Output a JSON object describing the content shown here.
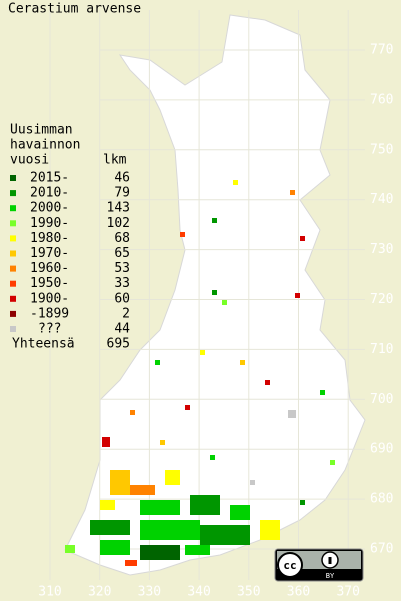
{
  "title": "Cerastium arvense",
  "legend": {
    "heading": [
      "Uusimman",
      "havainnon",
      "vuosi"
    ],
    "count_heading": "lkm",
    "entries": [
      {
        "label": "2015-",
        "count": 46,
        "color": "#006400"
      },
      {
        "label": "2010-",
        "count": 79,
        "color": "#009600"
      },
      {
        "label": "2000-",
        "count": 143,
        "color": "#00d200"
      },
      {
        "label": "1990-",
        "count": 102,
        "color": "#78ff28"
      },
      {
        "label": "1980-",
        "count": 68,
        "color": "#ffff00"
      },
      {
        "label": "1970-",
        "count": 65,
        "color": "#ffc800"
      },
      {
        "label": "1960-",
        "count": 53,
        "color": "#ff8200"
      },
      {
        "label": "1950-",
        "count": 33,
        "color": "#ff3c00"
      },
      {
        "label": "1900-",
        "count": 60,
        "color": "#d20000"
      },
      {
        "label": "-1899",
        "count": 2,
        "color": "#8c0000"
      },
      {
        "label": "???",
        "count": 44,
        "color": "#c8c8c8"
      }
    ],
    "total_label": "Yhteensä",
    "total": 695
  },
  "x_labels": [
    310,
    320,
    330,
    340,
    350,
    360,
    370
  ],
  "y_labels": [
    770,
    760,
    750,
    740,
    730,
    720,
    710,
    700,
    690,
    680,
    670
  ]
}
